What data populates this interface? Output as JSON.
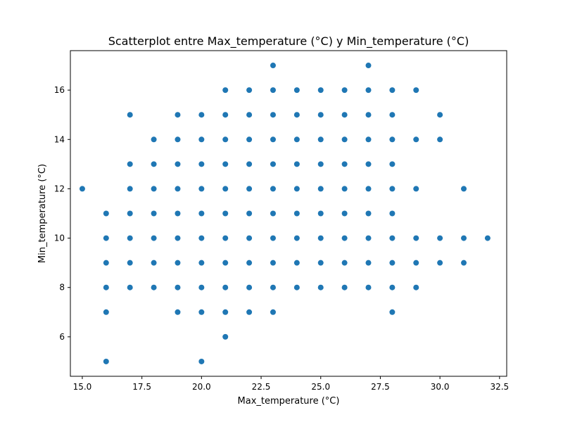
{
  "chart_data": {
    "type": "scatter",
    "title": "Scatterplot entre Max_temperature (°C) y Min_temperature (°C)",
    "xlabel": "Max_temperature (°C)",
    "ylabel": "Min_temperature (°C)",
    "xlim": [
      14.5,
      32.8
    ],
    "ylim": [
      4.4,
      17.6
    ],
    "xticks": [
      15.0,
      17.5,
      20.0,
      22.5,
      25.0,
      27.5,
      30.0,
      32.5
    ],
    "xtick_labels": [
      "15.0",
      "17.5",
      "20.0",
      "22.5",
      "25.0",
      "27.5",
      "30.0",
      "32.5"
    ],
    "yticks": [
      6,
      8,
      10,
      12,
      14,
      16
    ],
    "ytick_labels": [
      "6",
      "8",
      "10",
      "12",
      "14",
      "16"
    ],
    "grid": false,
    "marker_color": "#1f77b4",
    "points": [
      [
        15,
        12
      ],
      [
        16,
        5
      ],
      [
        16,
        7
      ],
      [
        16,
        8
      ],
      [
        16,
        9
      ],
      [
        16,
        10
      ],
      [
        16,
        11
      ],
      [
        17,
        8
      ],
      [
        17,
        9
      ],
      [
        17,
        10
      ],
      [
        17,
        11
      ],
      [
        17,
        12
      ],
      [
        17,
        13
      ],
      [
        17,
        15
      ],
      [
        18,
        8
      ],
      [
        18,
        9
      ],
      [
        18,
        10
      ],
      [
        18,
        11
      ],
      [
        18,
        12
      ],
      [
        18,
        13
      ],
      [
        18,
        14
      ],
      [
        19,
        7
      ],
      [
        19,
        8
      ],
      [
        19,
        9
      ],
      [
        19,
        10
      ],
      [
        19,
        11
      ],
      [
        19,
        12
      ],
      [
        19,
        13
      ],
      [
        19,
        14
      ],
      [
        19,
        15
      ],
      [
        20,
        5
      ],
      [
        20,
        7
      ],
      [
        20,
        8
      ],
      [
        20,
        9
      ],
      [
        20,
        10
      ],
      [
        20,
        11
      ],
      [
        20,
        12
      ],
      [
        20,
        13
      ],
      [
        20,
        14
      ],
      [
        20,
        15
      ],
      [
        21,
        6
      ],
      [
        21,
        7
      ],
      [
        21,
        8
      ],
      [
        21,
        9
      ],
      [
        21,
        10
      ],
      [
        21,
        11
      ],
      [
        21,
        12
      ],
      [
        21,
        13
      ],
      [
        21,
        14
      ],
      [
        21,
        15
      ],
      [
        21,
        16
      ],
      [
        22,
        7
      ],
      [
        22,
        8
      ],
      [
        22,
        9
      ],
      [
        22,
        10
      ],
      [
        22,
        11
      ],
      [
        22,
        12
      ],
      [
        22,
        13
      ],
      [
        22,
        14
      ],
      [
        22,
        15
      ],
      [
        22,
        16
      ],
      [
        23,
        7
      ],
      [
        23,
        8
      ],
      [
        23,
        9
      ],
      [
        23,
        10
      ],
      [
        23,
        11
      ],
      [
        23,
        12
      ],
      [
        23,
        13
      ],
      [
        23,
        14
      ],
      [
        23,
        15
      ],
      [
        23,
        16
      ],
      [
        23,
        17
      ],
      [
        24,
        8
      ],
      [
        24,
        9
      ],
      [
        24,
        10
      ],
      [
        24,
        11
      ],
      [
        24,
        12
      ],
      [
        24,
        13
      ],
      [
        24,
        14
      ],
      [
        24,
        15
      ],
      [
        24,
        16
      ],
      [
        25,
        8
      ],
      [
        25,
        9
      ],
      [
        25,
        10
      ],
      [
        25,
        11
      ],
      [
        25,
        12
      ],
      [
        25,
        13
      ],
      [
        25,
        14
      ],
      [
        25,
        15
      ],
      [
        25,
        16
      ],
      [
        26,
        8
      ],
      [
        26,
        9
      ],
      [
        26,
        10
      ],
      [
        26,
        11
      ],
      [
        26,
        12
      ],
      [
        26,
        13
      ],
      [
        26,
        14
      ],
      [
        26,
        15
      ],
      [
        26,
        16
      ],
      [
        27,
        8
      ],
      [
        27,
        9
      ],
      [
        27,
        10
      ],
      [
        27,
        11
      ],
      [
        27,
        12
      ],
      [
        27,
        13
      ],
      [
        27,
        14
      ],
      [
        27,
        15
      ],
      [
        27,
        16
      ],
      [
        27,
        17
      ],
      [
        28,
        7
      ],
      [
        28,
        8
      ],
      [
        28,
        9
      ],
      [
        28,
        10
      ],
      [
        28,
        11
      ],
      [
        28,
        12
      ],
      [
        28,
        13
      ],
      [
        28,
        14
      ],
      [
        28,
        15
      ],
      [
        28,
        16
      ],
      [
        29,
        8
      ],
      [
        29,
        9
      ],
      [
        29,
        10
      ],
      [
        29,
        12
      ],
      [
        29,
        14
      ],
      [
        29,
        16
      ],
      [
        30,
        9
      ],
      [
        30,
        10
      ],
      [
        30,
        14
      ],
      [
        30,
        15
      ],
      [
        31,
        9
      ],
      [
        31,
        10
      ],
      [
        31,
        12
      ],
      [
        32,
        10
      ]
    ]
  }
}
